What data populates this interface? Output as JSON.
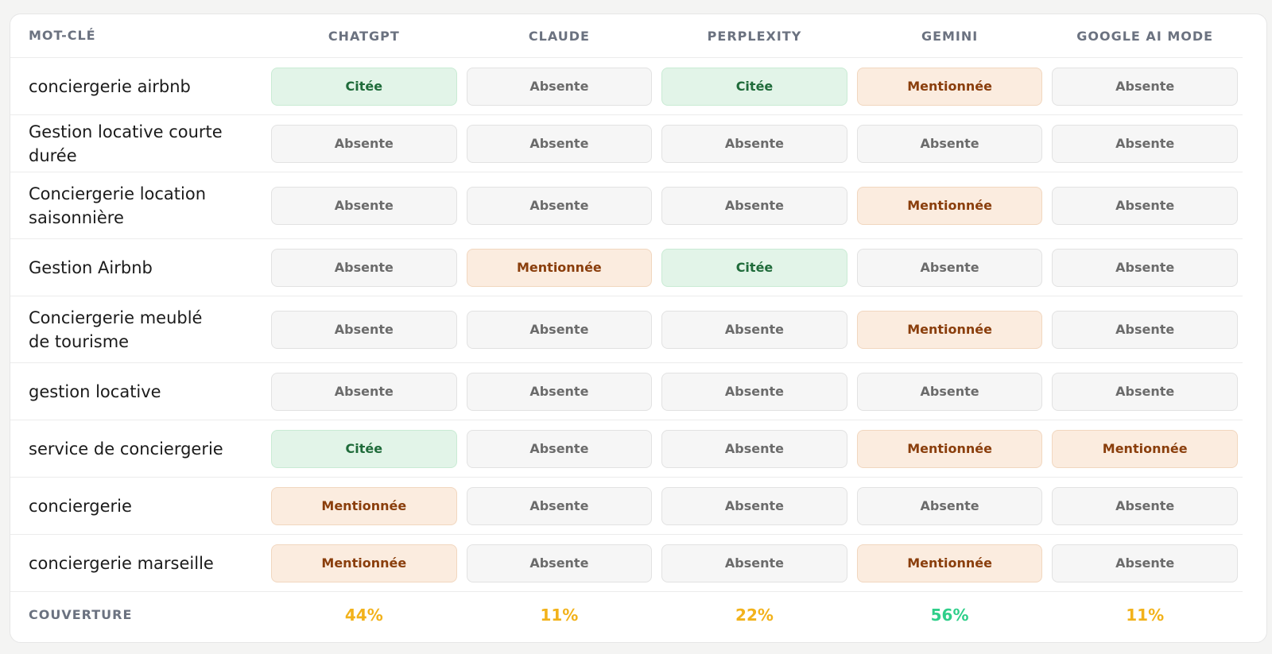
{
  "header": {
    "keyword": "MOT-CLÉ",
    "columns": [
      "CHATGPT",
      "CLAUDE",
      "PERPLEXITY",
      "GEMINI",
      "GOOGLE AI MODE"
    ]
  },
  "status_colors": {
    "Citée": "#1f6b3a",
    "Mentionnée": "#8a3e0c",
    "Absente": "#6b6b6b"
  },
  "rows": [
    {
      "keyword": "conciergerie airbnb",
      "statuses": [
        "Citée",
        "Absente",
        "Citée",
        "Mentionnée",
        "Absente"
      ]
    },
    {
      "keyword": "Gestion locative courte durée",
      "statuses": [
        "Absente",
        "Absente",
        "Absente",
        "Absente",
        "Absente"
      ]
    },
    {
      "keyword": "Conciergerie location\nsaisonnière",
      "statuses": [
        "Absente",
        "Absente",
        "Absente",
        "Mentionnée",
        "Absente"
      ]
    },
    {
      "keyword": "Gestion Airbnb",
      "statuses": [
        "Absente",
        "Mentionnée",
        "Citée",
        "Absente",
        "Absente"
      ]
    },
    {
      "keyword": "Conciergerie meublé\nde tourisme",
      "statuses": [
        "Absente",
        "Absente",
        "Absente",
        "Mentionnée",
        "Absente"
      ]
    },
    {
      "keyword": "gestion locative",
      "statuses": [
        "Absente",
        "Absente",
        "Absente",
        "Absente",
        "Absente"
      ]
    },
    {
      "keyword": "service de conciergerie",
      "statuses": [
        "Citée",
        "Absente",
        "Absente",
        "Mentionnée",
        "Mentionnée"
      ]
    },
    {
      "keyword": "conciergerie",
      "statuses": [
        "Mentionnée",
        "Absente",
        "Absente",
        "Absente",
        "Absente"
      ]
    },
    {
      "keyword": "conciergerie marseille",
      "statuses": [
        "Mentionnée",
        "Absente",
        "Absente",
        "Mentionnée",
        "Absente"
      ]
    }
  ],
  "footer": {
    "label": "COUVERTURE",
    "values": [
      "44%",
      "11%",
      "22%",
      "56%",
      "11%"
    ],
    "colors": [
      "#f2b21b",
      "#f2b21b",
      "#f2b21b",
      "#2fcf8a",
      "#f2b21b"
    ]
  }
}
